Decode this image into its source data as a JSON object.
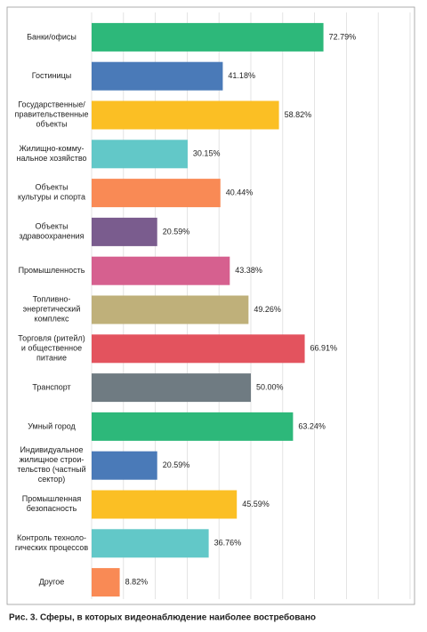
{
  "chart_data": {
    "type": "bar",
    "orientation": "horizontal",
    "caption": "Рис. 3. Сферы, в которых видеонаблюдение наиболее востребовано",
    "categories": [
      "Банки/офисы",
      "Гостиницы",
      "Государственные/\nправительственные\nобъекты",
      "Жилищно-комму-\nнальное хозяйство",
      "Объекты\nкультуры и спорта",
      "Объекты\nздравоохранения",
      "Промышленность",
      "Топливно-\nэнергетический\nкомплекс",
      "Торговля (ритейл)\nи общественное\nпитание",
      "Транспорт",
      "Умный город",
      "Индивидуальное\nжилищное строи-\nтельство (частный\nсектор)",
      "Промышленная\nбезопасность",
      "Контроль техноло-\nгических процессов",
      "Другое"
    ],
    "values": [
      72.79,
      41.18,
      58.82,
      30.15,
      40.44,
      20.59,
      43.38,
      49.26,
      66.91,
      50.0,
      63.24,
      20.59,
      45.59,
      36.76,
      8.82
    ],
    "value_labels": [
      "72.79%",
      "41.18%",
      "58.82%",
      "30.15%",
      "40.44%",
      "20.59%",
      "43.38%",
      "49.26%",
      "66.91%",
      "50.00%",
      "63.24%",
      "20.59%",
      "45.59%",
      "36.76%",
      "8.82%"
    ],
    "colors": [
      "#2db87a",
      "#4a7ab8",
      "#fbbf24",
      "#62c8c8",
      "#f98a55",
      "#7a5c8e",
      "#d6608f",
      "#bfb07a",
      "#e3535e",
      "#6f7b82",
      "#2db87a",
      "#4a7ab8",
      "#fbbf24",
      "#62c8c8",
      "#f98a55"
    ],
    "xlim": [
      0,
      100
    ],
    "xticks": [
      0,
      10,
      20,
      30,
      40,
      50,
      60,
      70,
      80,
      90,
      100
    ],
    "grid": true
  }
}
